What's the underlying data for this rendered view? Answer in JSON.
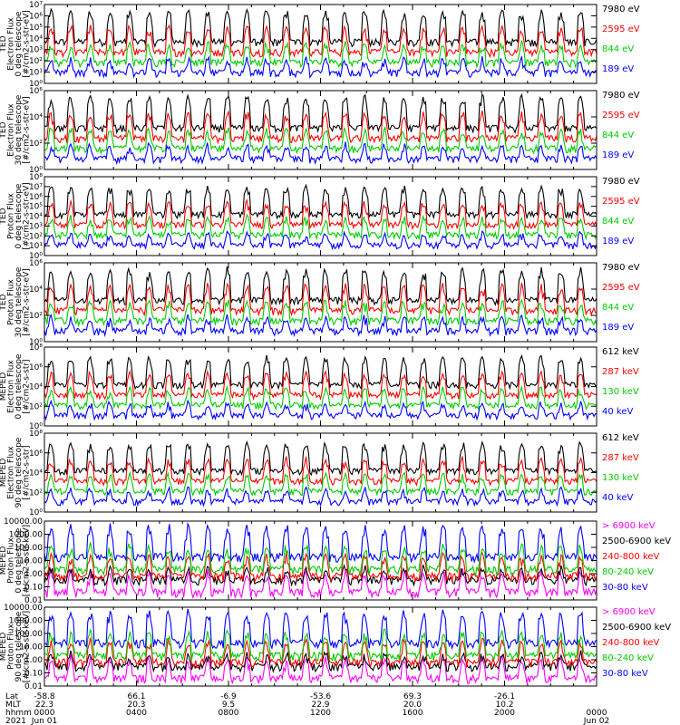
{
  "chart_data": [
    {
      "type": "line",
      "ylabel": [
        "TED",
        "Electron Flux",
        "0 deg telescope",
        "[#/cm2-s-str-eV]"
      ],
      "yscale": "log",
      "ylim": [
        1,
        10000000
      ],
      "tick_labels": [
        "10⁰",
        "10¹",
        "10²",
        "10³",
        "10⁴",
        "10⁵",
        "10⁶",
        "10⁷"
      ],
      "series": [
        {
          "name": "7980 eV",
          "color": "#000000"
        },
        {
          "name": "2595 eV",
          "color": "#ff0000"
        },
        {
          "name": "844 eV",
          "color": "#00cc00"
        },
        {
          "name": "189 eV",
          "color": "#0000ff"
        }
      ]
    },
    {
      "type": "line",
      "ylabel": [
        "TED",
        "Electron Flux",
        "30 deg telescope",
        "[#/cm2-s-str-eV]"
      ],
      "yscale": "log",
      "ylim": [
        1,
        10000000
      ],
      "tick_labels": [
        "10⁰",
        "10²",
        "10⁴",
        "10⁶"
      ],
      "series": [
        {
          "name": "7980 eV",
          "color": "#000000"
        },
        {
          "name": "2595 eV",
          "color": "#ff0000"
        },
        {
          "name": "844 eV",
          "color": "#00cc00"
        },
        {
          "name": "189 eV",
          "color": "#0000ff"
        }
      ]
    },
    {
      "type": "line",
      "ylabel": [
        "TED",
        "Proton Flux",
        "0 deg telescope",
        "[#/cm2-s-str-eV]"
      ],
      "yscale": "log",
      "ylim": [
        1,
        100000000
      ],
      "tick_labels": [
        "10⁰",
        "10¹",
        "10²",
        "10³",
        "10⁴",
        "10⁵",
        "10⁶",
        "10⁷",
        "10⁸"
      ],
      "series": [
        {
          "name": "7980 eV",
          "color": "#000000"
        },
        {
          "name": "2595 eV",
          "color": "#ff0000"
        },
        {
          "name": "844 eV",
          "color": "#00cc00"
        },
        {
          "name": "189 eV",
          "color": "#0000ff"
        }
      ]
    },
    {
      "type": "line",
      "ylabel": [
        "TED",
        "Proton Flux",
        "30 deg telescope",
        "[#/cm2-s-str-eV]"
      ],
      "yscale": "log",
      "ylim": [
        1,
        10000000
      ],
      "tick_labels": [
        "10⁰",
        "10²",
        "10⁴",
        "10⁶"
      ],
      "series": [
        {
          "name": "7980 eV",
          "color": "#000000"
        },
        {
          "name": "2595 eV",
          "color": "#ff0000"
        },
        {
          "name": "844 eV",
          "color": "#00cc00"
        },
        {
          "name": "189 eV",
          "color": "#0000ff"
        }
      ]
    },
    {
      "type": "line",
      "ylabel": [
        "MEPED",
        "Electron Flux",
        "0 deg telescope",
        "[#/cm2-s-str]"
      ],
      "yscale": "log",
      "ylim": [
        1,
        100000000
      ],
      "tick_labels": [
        "10⁰",
        "10²",
        "10⁴",
        "10⁶",
        "10⁸"
      ],
      "series": [
        {
          "name": "612 keV",
          "color": "#000000"
        },
        {
          "name": "287 keV",
          "color": "#ff0000"
        },
        {
          "name": "130 keV",
          "color": "#00cc00"
        },
        {
          "name": "40 keV",
          "color": "#0000ff"
        }
      ]
    },
    {
      "type": "line",
      "ylabel": [
        "MEPED",
        "Electron Flux",
        "90 deg telescope",
        "[#/cm2-s-str]"
      ],
      "yscale": "log",
      "ylim": [
        1,
        100000000
      ],
      "tick_labels": [
        "10⁰",
        "10²",
        "10⁴",
        "10⁶",
        "10⁸"
      ],
      "series": [
        {
          "name": "612 keV",
          "color": "#000000"
        },
        {
          "name": "287 keV",
          "color": "#ff0000"
        },
        {
          "name": "130 keV",
          "color": "#00cc00"
        },
        {
          "name": "40 keV",
          "color": "#0000ff"
        }
      ]
    },
    {
      "type": "line",
      "ylabel": [
        "MEPED",
        "Proton Flux",
        "0 deg telescope",
        "[#/cm2-s-str-keV]"
      ],
      "yscale": "log",
      "ylim": [
        0.01,
        10000
      ],
      "tick_labels": [
        "0.01",
        "0.10",
        "1.00",
        "10.00",
        "100.00",
        "1000.00",
        "10000.00"
      ],
      "series": [
        {
          "name": "> 6900 keV",
          "color": "#ff00ff"
        },
        {
          "name": "2500-6900 keV",
          "color": "#000000"
        },
        {
          "name": "240-800 keV",
          "color": "#ff0000"
        },
        {
          "name": "80-240 keV",
          "color": "#00cc00"
        },
        {
          "name": "30-80 keV",
          "color": "#0000ff"
        }
      ]
    },
    {
      "type": "line",
      "ylabel": [
        "MEPED",
        "Proton Flux",
        "90 deg telescope",
        "[#/cm2-s-str-keV]"
      ],
      "yscale": "log",
      "ylim": [
        0.01,
        10000
      ],
      "tick_labels": [
        "0.01",
        "0.10",
        "1.00",
        "10.00",
        "100.00",
        "1000.00",
        "10000.00"
      ],
      "series": [
        {
          "name": "> 6900 keV",
          "color": "#ff00ff"
        },
        {
          "name": "2500-6900 keV",
          "color": "#000000"
        },
        {
          "name": "240-800 keV",
          "color": "#ff0000"
        },
        {
          "name": "80-240 keV",
          "color": "#00cc00"
        },
        {
          "name": "30-80 keV",
          "color": "#0000ff"
        }
      ]
    }
  ],
  "x_axis": {
    "row_labels": [
      "Lat",
      "MLT",
      "hhmm",
      "2021"
    ],
    "range_minutes": [
      0,
      1440
    ],
    "ticks": [
      {
        "lat": "-58.8",
        "mlt": "22.3",
        "hhmm": "0000",
        "date": "Jun 01"
      },
      {
        "lat": "66.1",
        "mlt": "20.3",
        "hhmm": "0400",
        "date": ""
      },
      {
        "lat": "-6.9",
        "mlt": "9.5",
        "hhmm": "0800",
        "date": ""
      },
      {
        "lat": "-53.6",
        "mlt": "22.9",
        "hhmm": "1200",
        "date": ""
      },
      {
        "lat": "69.3",
        "mlt": "20.0",
        "hhmm": "1600",
        "date": ""
      },
      {
        "lat": "-26.1",
        "mlt": "10.2",
        "hhmm": "2000",
        "date": ""
      },
      {
        "lat": "",
        "mlt": "",
        "hhmm": "0000",
        "date": "Jun 02"
      }
    ]
  }
}
